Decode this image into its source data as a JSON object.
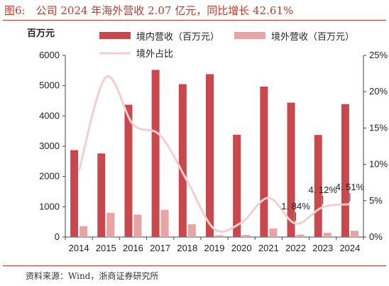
{
  "title": "图6:　公司 2024 年海外营收 2.07 亿元，同比增长 42.61%",
  "source": "资料来源：Wind，浙商证券研究所",
  "colors": {
    "accent": "#c0392b",
    "domestic": "#c8484d",
    "overseas": "#e8a3a5",
    "share_line": "#f2cfd0"
  },
  "chart_data": {
    "type": "bar",
    "unit_label": "百万元",
    "categories": [
      "2014",
      "2015",
      "2016",
      "2017",
      "2018",
      "2019",
      "2020",
      "2021",
      "2022",
      "2023",
      "2024"
    ],
    "series": [
      {
        "name": "境内营收（百万元）",
        "type": "bar",
        "axis": "left",
        "values": [
          2870,
          2760,
          4370,
          5520,
          5050,
          5380,
          3380,
          4970,
          4440,
          3370,
          4390
        ]
      },
      {
        "name": "境外营收（百万元）",
        "type": "bar",
        "axis": "left",
        "values": [
          360,
          800,
          740,
          900,
          420,
          60,
          70,
          280,
          80,
          140,
          207
        ]
      },
      {
        "name": "境外占比",
        "type": "line",
        "axis": "right",
        "values": [
          0.09,
          0.22,
          0.155,
          0.14,
          0.077,
          0.011,
          0.02,
          0.054,
          0.0184,
          0.0412,
          0.0451
        ]
      }
    ],
    "annotations": [
      {
        "category": "2022",
        "text": "1. 84%"
      },
      {
        "category": "2023",
        "text": "4. 12%"
      },
      {
        "category": "2024",
        "text": "4. 51%"
      }
    ],
    "ylim_left": [
      0,
      6000
    ],
    "yticks_left": [
      "0",
      "1000",
      "2000",
      "3000",
      "4000",
      "5000",
      "6000"
    ],
    "ylim_right": [
      0,
      0.25
    ],
    "yticks_right": [
      "0%",
      "5%",
      "10%",
      "15%",
      "20%",
      "25%"
    ],
    "legend_position": "top",
    "grid": false
  }
}
